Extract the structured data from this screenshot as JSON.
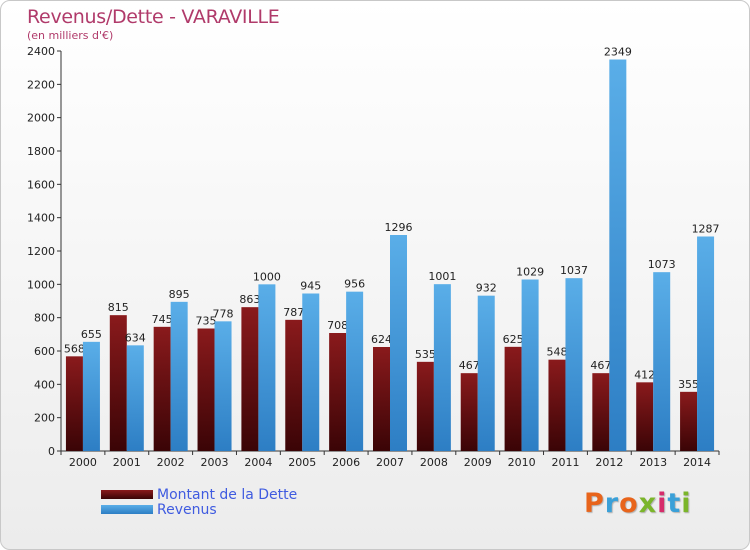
{
  "title": "Revenus/Dette - VARAVILLE",
  "subtitle": "(en milliers d'€)",
  "logo": {
    "text": "Proxiti",
    "colors": [
      "#e8641b",
      "#3aa0d8",
      "#e8641b",
      "#7bb52a",
      "#d62c6b",
      "#3aa0d8",
      "#7bb52a"
    ]
  },
  "colors": {
    "dette": "#7a0f12",
    "revenus": "#3d9ae0"
  },
  "chart_data": {
    "type": "bar",
    "categories": [
      "2000",
      "2001",
      "2002",
      "2003",
      "2004",
      "2005",
      "2006",
      "2007",
      "2008",
      "2009",
      "2010",
      "2011",
      "2012",
      "2013",
      "2014"
    ],
    "series": [
      {
        "name": "Montant de la Dette",
        "values": [
          568,
          815,
          745,
          735,
          863,
          787,
          708,
          624,
          535,
          467,
          625,
          548,
          467,
          412,
          355
        ]
      },
      {
        "name": "Revenus",
        "values": [
          655,
          634,
          895,
          778,
          1000,
          945,
          956,
          1296,
          1001,
          932,
          1029,
          1037,
          2349,
          1073,
          1287
        ]
      }
    ],
    "yticks": [
      0,
      200,
      400,
      600,
      800,
      1000,
      1200,
      1400,
      1600,
      1800,
      2000,
      2200,
      2400
    ],
    "ylim": [
      0,
      2400
    ],
    "grid": false,
    "legend": "bottom-left"
  }
}
